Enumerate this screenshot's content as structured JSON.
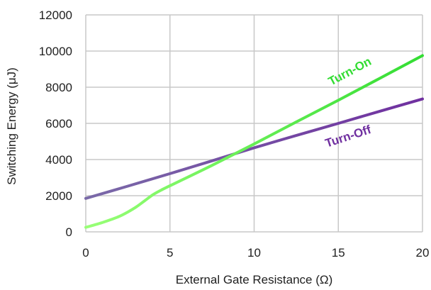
{
  "chart_data": {
    "type": "line",
    "title": "",
    "xlabel": "External Gate Resistance (Ω)",
    "ylabel": "Switching Energy (μJ)",
    "xlim": [
      0,
      20
    ],
    "ylim": [
      0,
      12000
    ],
    "xticks": [
      0,
      5,
      10,
      15,
      20
    ],
    "yticks": [
      0,
      2000,
      4000,
      6000,
      8000,
      10000,
      12000
    ],
    "grid": true,
    "legend": "none (series labeled directly on the lines)",
    "series": [
      {
        "name": "Turn-On",
        "color": "#33dd33",
        "gradient_start_color": "#99ff77",
        "x": [
          0,
          0.5,
          1,
          1.5,
          2,
          2.5,
          3,
          3.5,
          4,
          4.5,
          5,
          7.5,
          10,
          12.5,
          15,
          17.5,
          20
        ],
        "y": [
          250,
          380,
          520,
          680,
          860,
          1100,
          1380,
          1720,
          2060,
          2320,
          2550,
          3680,
          4860,
          6080,
          7280,
          8510,
          9750
        ]
      },
      {
        "name": "Turn-Off",
        "color": "#7030a0",
        "gradient_start_color": "#7a6aa8",
        "x": [
          0,
          2.5,
          5,
          7.5,
          10,
          12.5,
          15,
          17.5,
          20
        ],
        "y": [
          1850,
          2530,
          3220,
          3930,
          4650,
          5330,
          6000,
          6680,
          7350
        ]
      }
    ]
  }
}
